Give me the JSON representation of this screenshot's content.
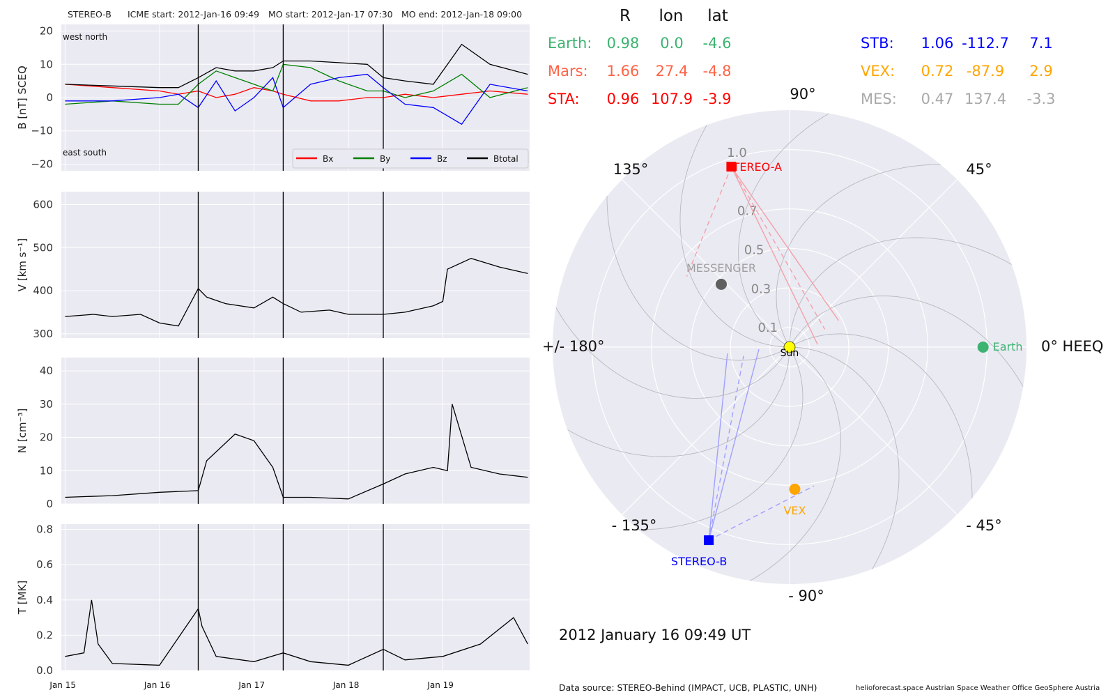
{
  "header": {
    "spacecraft": "STEREO-B",
    "icme_start": "ICME start: 2012-Jan-16 09:49",
    "mo_start": "MO start: 2012-Jan-17 07:30",
    "mo_end": "MO end: 2012-Jan-18 09:00"
  },
  "positions": {
    "col_headers": [
      "R",
      "lon",
      "lat"
    ],
    "rows": [
      {
        "name": "Earth:",
        "R": "0.98",
        "lon": "0.0",
        "lat": "-4.6",
        "color": "#3cb371"
      },
      {
        "name": "Mars:",
        "R": "1.66",
        "lon": "27.4",
        "lat": "-4.8",
        "color": "#ff6347"
      },
      {
        "name": "STA:",
        "R": "0.96",
        "lon": "107.9",
        "lat": "-3.9",
        "color": "#ff0000"
      },
      {
        "name": "STB:",
        "R": "1.06",
        "lon": "-112.7",
        "lat": "7.1",
        "color": "#0000ff"
      },
      {
        "name": "VEX:",
        "R": "0.72",
        "lon": "-87.9",
        "lat": "2.9",
        "color": "#ffa500"
      },
      {
        "name": "MES:",
        "R": "0.47",
        "lon": "137.4",
        "lat": "-3.3",
        "color": "#a9a9a9"
      }
    ]
  },
  "date_label": "2012 January 16  09:49 UT",
  "footer": {
    "source": "Data source: STEREO-Behind (IMPACT, UCB, PLASTIC, UNH)",
    "credits": "helioforecast.space   Austrian Space Weather Office   GeoSphere Austria"
  },
  "chart_data": [
    {
      "type": "line",
      "panel": "B",
      "ylabel": "B [nT] SCEQ",
      "ylim": [
        -22,
        22
      ],
      "yticks": [
        -20,
        -10,
        0,
        10,
        20
      ],
      "annotations": {
        "top_left": "west    north",
        "bottom_left": "east    south"
      },
      "legend": {
        "placement": "lower-right",
        "entries": [
          "Bx",
          "By",
          "Bz",
          "Btotal"
        ]
      },
      "series": [
        {
          "name": "Bx",
          "color": "#ff0000",
          "x": [
            15.0,
            15.5,
            16.0,
            16.2,
            16.41,
            16.6,
            16.8,
            17.0,
            17.2,
            17.31,
            17.6,
            17.9,
            18.2,
            18.37,
            18.6,
            18.9,
            19.2,
            19.5,
            19.9
          ],
          "y": [
            4,
            3,
            2,
            1,
            2,
            0,
            1,
            3,
            2,
            1,
            -1,
            -1,
            0,
            0,
            1,
            0,
            1,
            2,
            1
          ]
        },
        {
          "name": "By",
          "color": "#008000",
          "x": [
            15.0,
            15.5,
            16.0,
            16.2,
            16.41,
            16.6,
            16.8,
            17.0,
            17.2,
            17.31,
            17.6,
            17.9,
            18.2,
            18.37,
            18.6,
            18.9,
            19.2,
            19.5,
            19.9
          ],
          "y": [
            -2,
            -1,
            -2,
            -2,
            4,
            8,
            6,
            4,
            2,
            10,
            9,
            5,
            2,
            2,
            0,
            2,
            7,
            0,
            3
          ]
        },
        {
          "name": "Bz",
          "color": "#0000ff",
          "x": [
            15.0,
            15.5,
            16.0,
            16.2,
            16.41,
            16.6,
            16.8,
            17.0,
            17.2,
            17.31,
            17.6,
            17.9,
            18.2,
            18.37,
            18.6,
            18.9,
            19.2,
            19.5,
            19.9
          ],
          "y": [
            -1,
            -1,
            0,
            1,
            -3,
            5,
            -4,
            0,
            6,
            -3,
            4,
            6,
            7,
            3,
            -2,
            -3,
            -8,
            4,
            2
          ]
        },
        {
          "name": "Btotal",
          "color": "#000000",
          "x": [
            15.0,
            15.5,
            16.0,
            16.2,
            16.41,
            16.6,
            16.8,
            17.0,
            17.2,
            17.31,
            17.6,
            17.9,
            18.2,
            18.37,
            18.6,
            18.9,
            19.2,
            19.5,
            19.9
          ],
          "y": [
            4,
            3.5,
            3,
            3,
            6,
            9,
            8,
            8,
            9,
            11,
            11,
            10.5,
            10,
            6,
            5,
            4,
            16,
            10,
            7
          ]
        }
      ]
    },
    {
      "type": "line",
      "panel": "V",
      "ylabel": "V [km s⁻¹]",
      "ylim": [
        290,
        630
      ],
      "yticks": [
        300,
        400,
        500,
        600
      ],
      "series": [
        {
          "name": "",
          "color": "#000000",
          "x": [
            15.0,
            15.3,
            15.5,
            15.8,
            16.0,
            16.2,
            16.41,
            16.5,
            16.7,
            17.0,
            17.2,
            17.31,
            17.5,
            17.8,
            18.0,
            18.37,
            18.6,
            18.9,
            19.0,
            19.05,
            19.3,
            19.6,
            19.9
          ],
          "y": [
            340,
            345,
            340,
            345,
            325,
            318,
            405,
            385,
            370,
            360,
            385,
            370,
            350,
            355,
            345,
            345,
            350,
            365,
            375,
            450,
            475,
            455,
            440
          ]
        }
      ]
    },
    {
      "type": "line",
      "panel": "N",
      "ylabel": "N [cm⁻³]",
      "ylim": [
        0,
        44
      ],
      "yticks": [
        0,
        10,
        20,
        30,
        40
      ],
      "series": [
        {
          "name": "",
          "color": "#000000",
          "x": [
            15.0,
            15.5,
            16.0,
            16.41,
            16.5,
            16.8,
            17.0,
            17.2,
            17.31,
            17.6,
            18.0,
            18.37,
            18.6,
            18.9,
            19.05,
            19.1,
            19.3,
            19.6,
            19.9
          ],
          "y": [
            2,
            2.5,
            3.5,
            4,
            13,
            21,
            19,
            11,
            2,
            2,
            1.5,
            6,
            9,
            11,
            10,
            30,
            11,
            9,
            8
          ]
        }
      ]
    },
    {
      "type": "line",
      "panel": "T",
      "ylabel": "T [MK]",
      "ylim": [
        0,
        0.83
      ],
      "yticks": [
        0.0,
        0.2,
        0.4,
        0.6,
        0.8
      ],
      "xticks": [
        "Jan 15",
        "Jan 16",
        "Jan 17",
        "Jan 18",
        "Jan 19"
      ],
      "series": [
        {
          "name": "",
          "color": "#000000",
          "x": [
            15.0,
            15.2,
            15.28,
            15.35,
            15.5,
            16.0,
            16.41,
            16.45,
            16.6,
            17.0,
            17.31,
            17.6,
            18.0,
            18.37,
            18.6,
            19.0,
            19.4,
            19.75,
            19.9
          ],
          "y": [
            0.08,
            0.1,
            0.4,
            0.15,
            0.04,
            0.03,
            0.35,
            0.25,
            0.08,
            0.05,
            0.1,
            0.05,
            0.03,
            0.12,
            0.06,
            0.08,
            0.15,
            0.3,
            0.15
          ]
        }
      ]
    },
    {
      "type": "scatter",
      "panel": "polar",
      "projection": "polar",
      "rlim": [
        0,
        1.2
      ],
      "rticks": [
        "0.1",
        "0.3",
        "0.5",
        "0.7",
        "1.0"
      ],
      "angle_ticks": [
        "0° HEEQ",
        "45°",
        "90°",
        "135°",
        "+/- 180°",
        "- 135°",
        "- 90°",
        "- 45°"
      ],
      "points": [
        {
          "name": "Sun",
          "lon": 0,
          "r": 0,
          "color": "#ffff00",
          "marker": "circle"
        },
        {
          "name": "Earth",
          "lon": 0.0,
          "r": 0.98,
          "color": "#3cb371",
          "marker": "circle"
        },
        {
          "name": "STEREO-A",
          "lon": 107.9,
          "r": 0.96,
          "color": "#ff0000",
          "marker": "square"
        },
        {
          "name": "STEREO-B",
          "lon": -112.7,
          "r": 1.06,
          "color": "#0000ff",
          "marker": "square"
        },
        {
          "name": "VEX",
          "lon": -87.9,
          "r": 0.72,
          "color": "#ffa500",
          "marker": "circle"
        },
        {
          "name": "MESSENGER",
          "lon": 137.4,
          "r": 0.47,
          "color": "#606060",
          "marker": "circle"
        }
      ],
      "fov_colors": {
        "STEREO-A": "#f4a0a8",
        "STEREO-B": "#a0a0ff"
      }
    }
  ],
  "event_lines": {
    "x": [
      16.41,
      17.31,
      18.37
    ],
    "color": "#000000"
  }
}
